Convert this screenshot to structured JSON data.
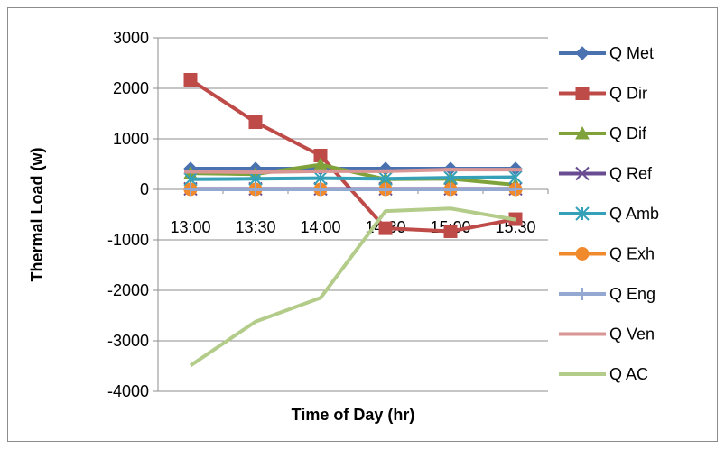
{
  "chart_data": {
    "type": "line",
    "title": "",
    "xlabel": "Time of Day (hr)",
    "ylabel": "Thermal Load (w)",
    "categories": [
      "13:00",
      "13:30",
      "14:00",
      "14:30",
      "15:00",
      "15:30"
    ],
    "ylim": [
      -4000,
      3000
    ],
    "yticks": [
      3000,
      2000,
      1000,
      0,
      -1000,
      -2000,
      -3000,
      -4000
    ],
    "ytick_labels": [
      "3000",
      "2000",
      "1000",
      "0",
      "-1000",
      "-2000",
      "-3000",
      "-4000"
    ],
    "grid": true,
    "legend_position": "right",
    "series": [
      {
        "name": "Q Met",
        "color": "#4a72b0",
        "marker": "diamond",
        "values": [
          410,
          410,
          410,
          410,
          410,
          410
        ]
      },
      {
        "name": "Q  Dir",
        "color": "#be4b48",
        "marker": "square",
        "values": [
          2170,
          1330,
          670,
          -770,
          -830,
          -590
        ]
      },
      {
        "name": "Q Dif",
        "color": "#7fa33a",
        "marker": "triangle",
        "values": [
          320,
          300,
          490,
          200,
          210,
          90
        ]
      },
      {
        "name": "Q Ref",
        "color": "#6a4c93",
        "marker": "x",
        "values": [
          10,
          10,
          10,
          10,
          10,
          10
        ]
      },
      {
        "name": "Q Amb",
        "color": "#35a0b8",
        "marker": "star",
        "values": [
          200,
          210,
          220,
          210,
          230,
          240
        ]
      },
      {
        "name": "Q Exh",
        "color": "#f08a2c",
        "marker": "circle",
        "values": [
          0,
          0,
          0,
          0,
          0,
          0
        ]
      },
      {
        "name": "Q Eng",
        "color": "#93a9d1",
        "marker": "plus",
        "values": [
          0,
          0,
          0,
          0,
          0,
          0
        ]
      },
      {
        "name": "Q Ven",
        "color": "#d99694",
        "marker": "dash",
        "values": [
          350,
          340,
          360,
          360,
          390,
          390
        ]
      },
      {
        "name": "Q AC",
        "color": "#b3cc8a",
        "marker": "none",
        "values": [
          -3490,
          -2620,
          -2150,
          -430,
          -380,
          -600
        ]
      }
    ]
  }
}
